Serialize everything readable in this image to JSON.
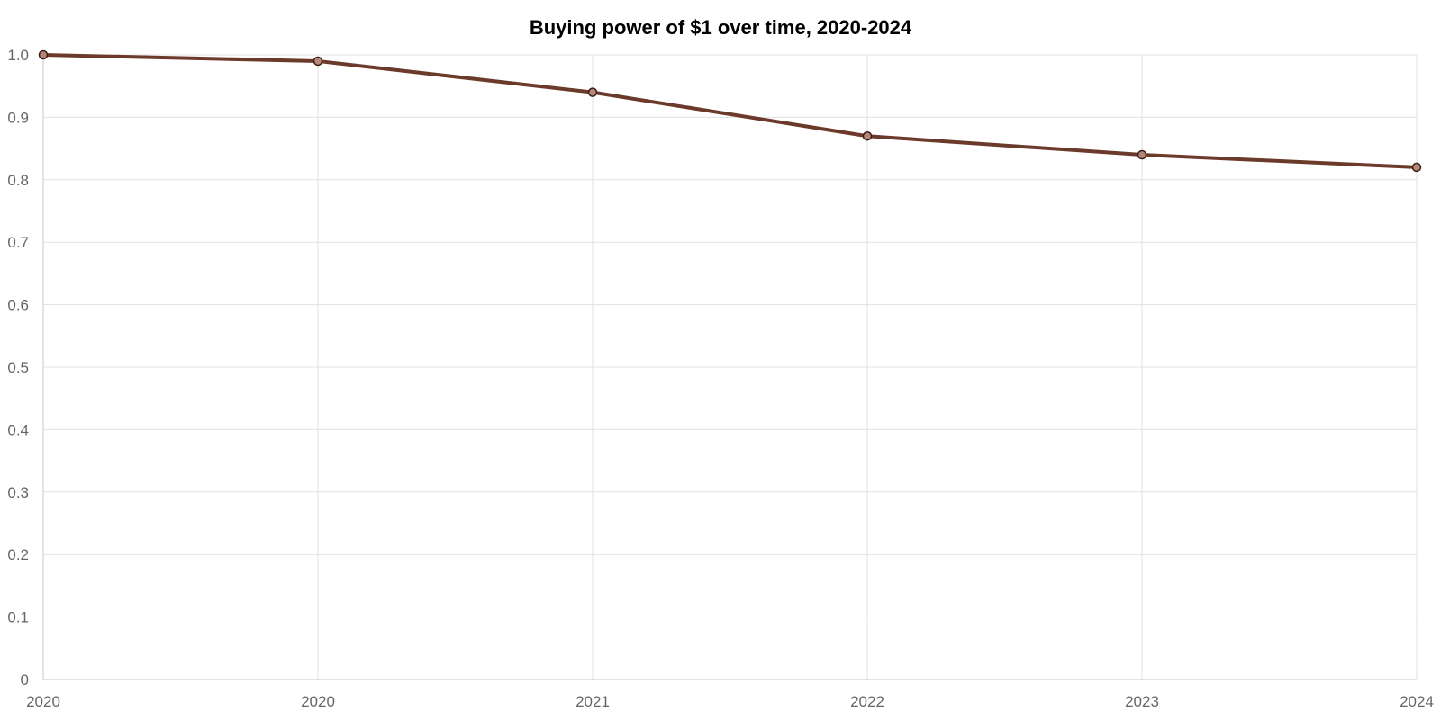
{
  "chart_data": {
    "type": "line",
    "title": "Buying power of $1 over time, 2020-2024",
    "xlabel": "",
    "ylabel": "",
    "categories": [
      "2020",
      "2020",
      "2021",
      "2022",
      "2023",
      "2024"
    ],
    "series": [
      {
        "values": [
          1.0,
          0.99,
          0.94,
          0.87,
          0.84,
          0.82
        ],
        "color": "#6b3a2a"
      }
    ],
    "ylim": [
      0,
      1.0
    ],
    "yticks": [
      "0",
      "0.1",
      "0.2",
      "0.3",
      "0.4",
      "0.5",
      "0.6",
      "0.7",
      "0.8",
      "0.9",
      "1.0"
    ],
    "grid": true,
    "legend": "none",
    "colors": {
      "line": "#6b3a2a",
      "marker_fill": "#b5877a",
      "marker_stroke": "#3a1d12"
    }
  }
}
